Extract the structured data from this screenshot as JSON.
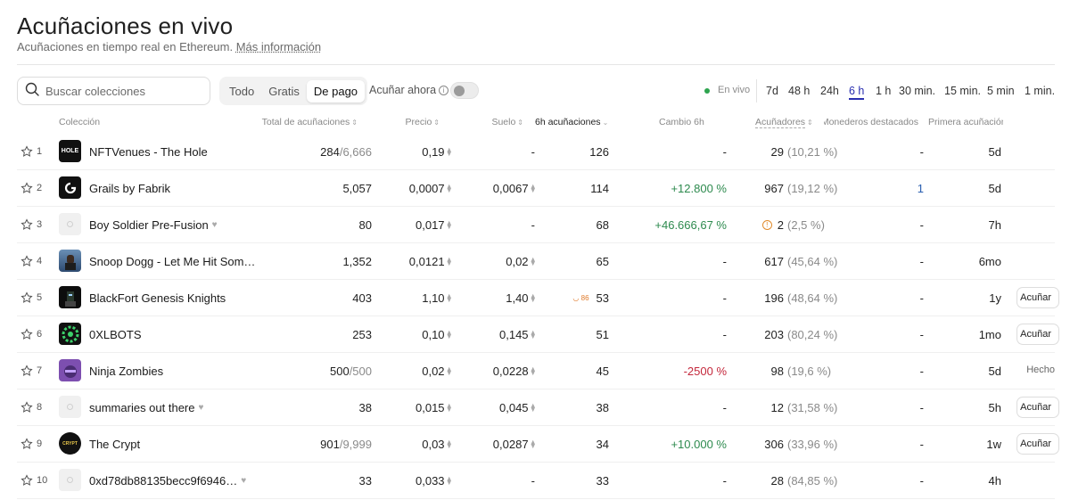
{
  "header": {
    "title": "Acuñaciones en vivo",
    "subtitle": "Acuñaciones en tiempo real en Ethereum.",
    "more_link": "Más información"
  },
  "search": {
    "placeholder": "Buscar colecciones",
    "icon": "search-icon"
  },
  "filters": {
    "segments": [
      {
        "label": "Todo",
        "active": false
      },
      {
        "label": "Gratis",
        "active": false
      },
      {
        "label": "De pago",
        "active": true
      }
    ],
    "mint_now_label": "Acuñar ahora",
    "mint_now_info": "i",
    "live_label": "En vivo",
    "time_filters": [
      "7d",
      "48 h",
      "24h",
      "6 h",
      "1 h",
      "30 min.",
      "15 min.",
      "5 min",
      "1 min."
    ],
    "active_time_filter": "6 h"
  },
  "columns": {
    "collection": "Colección",
    "total": "Total de acuñaciones",
    "price": "Precio",
    "floor": "Suelo",
    "mints": "6h acuñaciones",
    "change": "Cambio 6h",
    "minters": "Acuñadores",
    "whales": "Monederos destacados",
    "first": "Primera acuñación",
    "sort_icon": "⇕",
    "sort_down_icon": "⌄"
  },
  "colors": {
    "accent": "#2a2fb0",
    "positive": "#2d8a4e",
    "negative": "#c4283c",
    "live": "#2ea44f"
  },
  "eth_icon": "⧫",
  "rows": [
    {
      "rank": "1",
      "name": "NFTVenues - The Hole",
      "thumb": "hole",
      "thumb_text": "HOLE",
      "verified": false,
      "total": "284",
      "total_max": "/6,666",
      "price": "0,19",
      "floor": "-",
      "mints": "126",
      "flame": "",
      "change": "-",
      "change_type": "none",
      "minters": "29",
      "minters_pct": "(10,21 %)",
      "warn": false,
      "whales": "-",
      "first": "5d",
      "action": ""
    },
    {
      "rank": "2",
      "name": "Grails by Fabrik",
      "thumb": "grails",
      "thumb_text": "",
      "verified": false,
      "total": "5,057",
      "total_max": "",
      "price": "0,0007",
      "floor": "0,0067",
      "mints": "114",
      "flame": "",
      "change": "+12.800 %",
      "change_type": "pos",
      "minters": "967",
      "minters_pct": "(19,12 %)",
      "warn": false,
      "whales": "1",
      "first": "5d",
      "action": ""
    },
    {
      "rank": "3",
      "name": "Boy Soldier Pre-Fusion",
      "thumb": "placeholder",
      "thumb_text": "",
      "verified": true,
      "total": "80",
      "total_max": "",
      "price": "0,017",
      "floor": "-",
      "mints": "68",
      "flame": "",
      "change": "+46.666,67 %",
      "change_type": "pos",
      "minters": "2",
      "minters_pct": "(2,5 %)",
      "warn": true,
      "whales": "-",
      "first": "7h",
      "action": ""
    },
    {
      "rank": "4",
      "name": "Snoop Dogg - Let Me Hit Som…",
      "thumb": "snoop",
      "thumb_text": "",
      "verified": false,
      "total": "1,352",
      "total_max": "",
      "price": "0,0121",
      "floor": "0,02",
      "mints": "65",
      "flame": "",
      "change": "-",
      "change_type": "none",
      "minters": "617",
      "minters_pct": "(45,64 %)",
      "warn": false,
      "whales": "-",
      "first": "6mo",
      "action": ""
    },
    {
      "rank": "5",
      "name": "BlackFort Genesis Knights",
      "thumb": "blackfort",
      "thumb_text": "",
      "verified": false,
      "total": "403",
      "total_max": "",
      "price": "1,10",
      "floor": "1,40",
      "mints": "53",
      "flame": "86",
      "change": "-",
      "change_type": "none",
      "minters": "196",
      "minters_pct": "(48,64 %)",
      "warn": false,
      "whales": "-",
      "first": "1y",
      "action": "Acuñar"
    },
    {
      "rank": "6",
      "name": "0XLBOTS",
      "thumb": "xlbots",
      "thumb_text": "",
      "verified": false,
      "total": "253",
      "total_max": "",
      "price": "0,10",
      "floor": "0,145",
      "mints": "51",
      "flame": "",
      "change": "-",
      "change_type": "none",
      "minters": "203",
      "minters_pct": "(80,24 %)",
      "warn": false,
      "whales": "-",
      "first": "1mo",
      "action": "Acuñar"
    },
    {
      "rank": "7",
      "name": "Ninja Zombies",
      "thumb": "ninja",
      "thumb_text": "",
      "verified": false,
      "total": "500",
      "total_max": "/500",
      "price": "0,02",
      "floor": "0,0228",
      "mints": "45",
      "flame": "",
      "change": "-2500 %",
      "change_type": "neg",
      "minters": "98",
      "minters_pct": "(19,6 %)",
      "warn": false,
      "whales": "-",
      "first": "5d",
      "action": "Hecho"
    },
    {
      "rank": "8",
      "name": "summaries out there",
      "thumb": "placeholder",
      "thumb_text": "",
      "verified": true,
      "total": "38",
      "total_max": "",
      "price": "0,015",
      "floor": "0,045",
      "mints": "38",
      "flame": "",
      "change": "-",
      "change_type": "none",
      "minters": "12",
      "minters_pct": "(31,58 %)",
      "warn": false,
      "whales": "-",
      "first": "5h",
      "action": "Acuñar"
    },
    {
      "rank": "9",
      "name": "The Crypt",
      "thumb": "crypt",
      "thumb_text": "CRYPT",
      "verified": false,
      "total": "901",
      "total_max": "/9,999",
      "price": "0,03",
      "floor": "0,0287",
      "mints": "34",
      "flame": "",
      "change": "+10.000 %",
      "change_type": "pos",
      "minters": "306",
      "minters_pct": "(33,96 %)",
      "warn": false,
      "whales": "-",
      "first": "1w",
      "action": "Acuñar"
    },
    {
      "rank": "10",
      "name": "0xd78db88135becc9f6946…",
      "thumb": "placeholder",
      "thumb_text": "",
      "verified": true,
      "total": "33",
      "total_max": "",
      "price": "0,033",
      "floor": "-",
      "mints": "33",
      "flame": "",
      "change": "-",
      "change_type": "none",
      "minters": "28",
      "minters_pct": "(84,85 %)",
      "warn": false,
      "whales": "-",
      "first": "4h",
      "action": ""
    }
  ]
}
